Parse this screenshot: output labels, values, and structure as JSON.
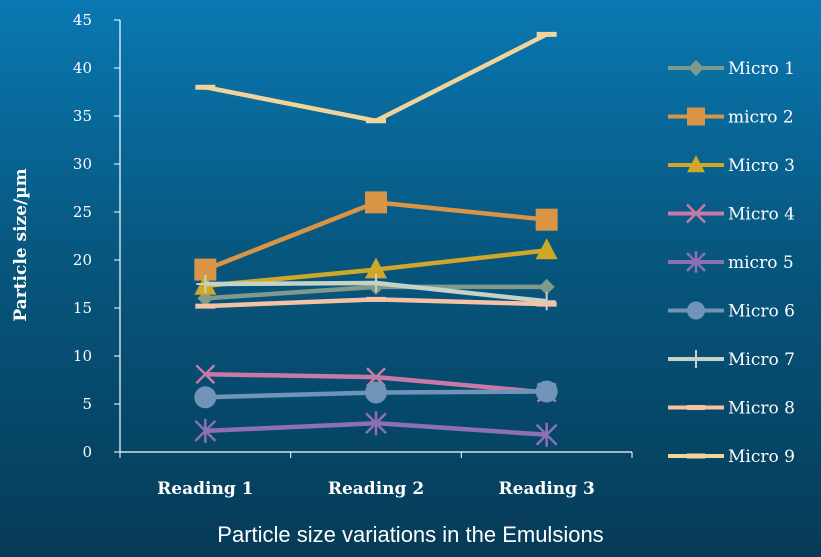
{
  "caption": "Particle size variations in the Emulsions",
  "chart_data": {
    "type": "line",
    "ylabel": "Particle size/µm",
    "xlabel": "",
    "ylim": [
      0,
      45
    ],
    "yticks": [
      0,
      5,
      10,
      15,
      20,
      25,
      30,
      35,
      40,
      45
    ],
    "categories": [
      "Reading 1",
      "Reading 2",
      "Reading 3"
    ],
    "legend_position": "right",
    "series": [
      {
        "name": "Micro 1",
        "values": [
          16,
          17.2,
          17.2
        ],
        "color": "#7f9a8a",
        "marker": "diamond"
      },
      {
        "name": "micro 2",
        "values": [
          19,
          26,
          24.2
        ],
        "color": "#d99445",
        "marker": "square"
      },
      {
        "name": "Micro 3",
        "values": [
          17.3,
          19,
          21
        ],
        "color": "#cfa82a",
        "marker": "triangle"
      },
      {
        "name": "Micro 4",
        "values": [
          8.1,
          7.8,
          6.2
        ],
        "color": "#c77aa5",
        "marker": "x"
      },
      {
        "name": "micro 5",
        "values": [
          2.2,
          3,
          1.8
        ],
        "color": "#8e6fb2",
        "marker": "star"
      },
      {
        "name": "Micro 6",
        "values": [
          5.7,
          6.2,
          6.3
        ],
        "color": "#7094b8",
        "marker": "circle"
      },
      {
        "name": "Micro 7",
        "values": [
          17.5,
          17.6,
          15.7
        ],
        "color": "#c4d2c8",
        "marker": "plus"
      },
      {
        "name": "Micro 8",
        "values": [
          15.2,
          15.9,
          15.4
        ],
        "color": "#f5c3a3",
        "marker": "dash"
      },
      {
        "name": "Micro 9",
        "values": [
          38,
          34.5,
          43.5
        ],
        "color": "#f2d49a",
        "marker": "dash"
      }
    ]
  }
}
